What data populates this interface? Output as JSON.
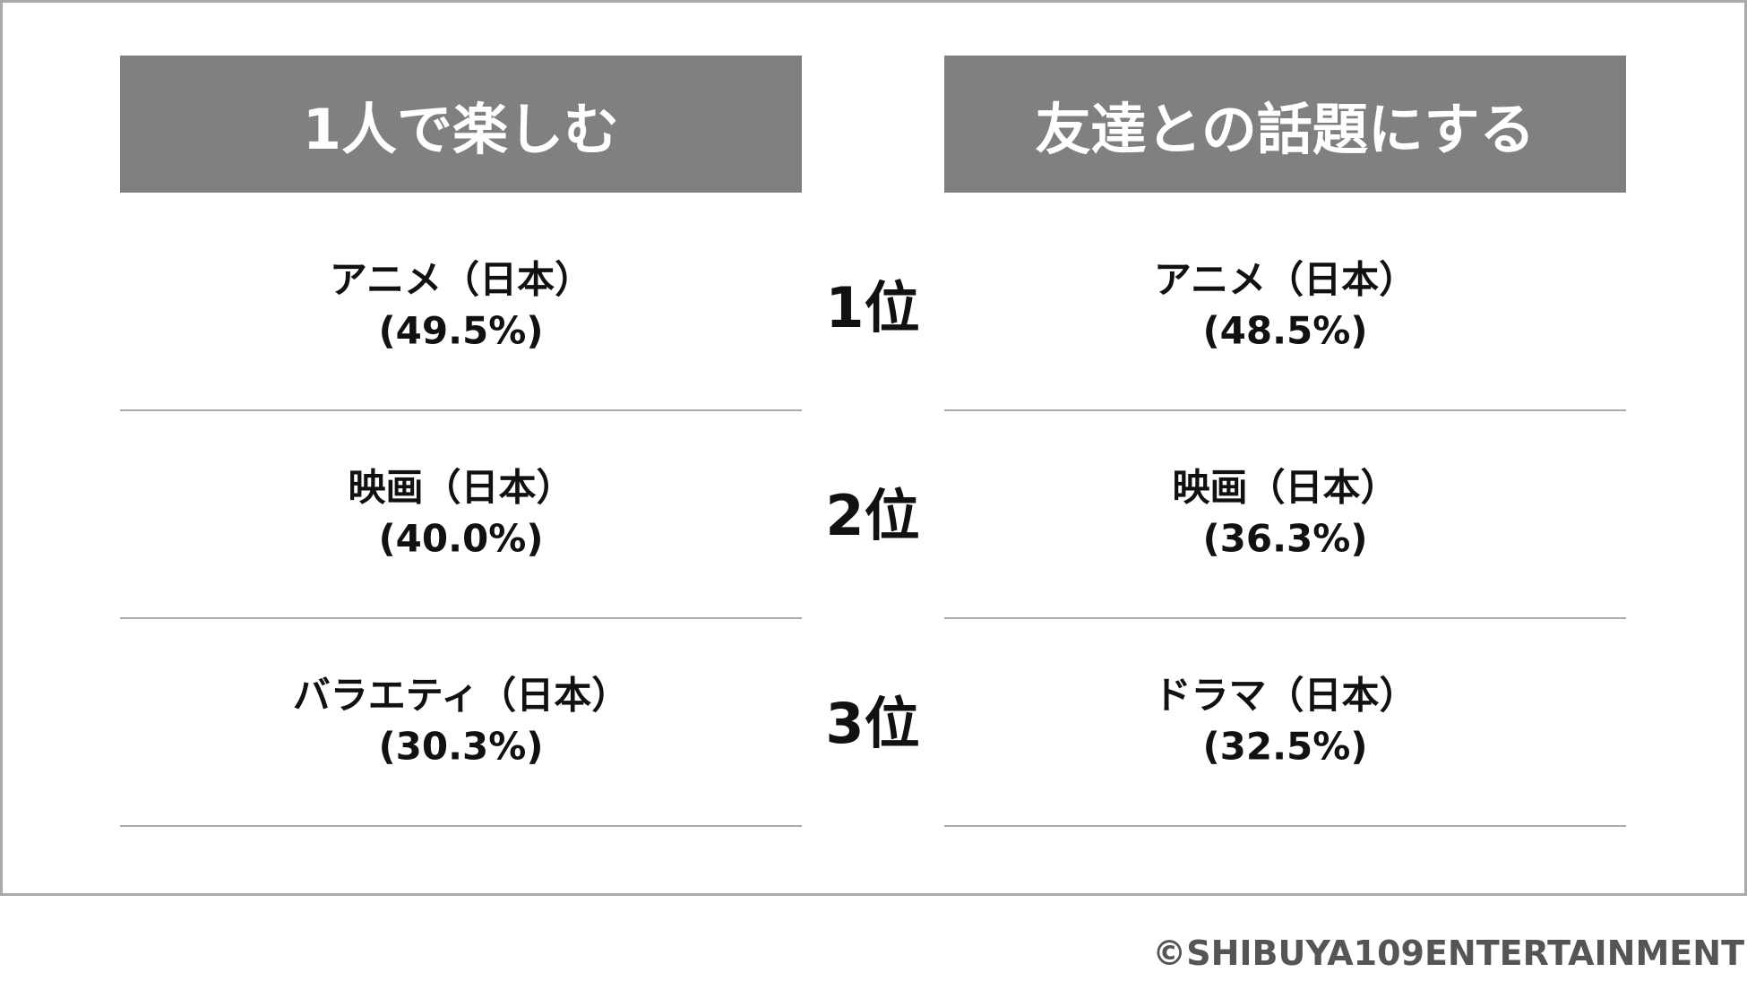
{
  "columns": [
    {
      "title": "1人で楽しむ",
      "items": [
        {
          "name": "アニメ（日本）",
          "share": "(49.5%)"
        },
        {
          "name": "映画（日本）",
          "share": "(40.0%)"
        },
        {
          "name": "バラエティ（日本）",
          "share": "(30.3%)"
        }
      ]
    },
    {
      "title": "友達との話題にする",
      "items": [
        {
          "name": "アニメ（日本）",
          "share": "(48.5%)"
        },
        {
          "name": "映画（日本）",
          "share": "(36.3%)"
        },
        {
          "name": "ドラマ（日本）",
          "share": "(32.5%)"
        }
      ]
    }
  ],
  "ranks": [
    "1位",
    "2位",
    "3位"
  ],
  "credit": "©SHIBUYA109ENTERTAINMENT"
}
